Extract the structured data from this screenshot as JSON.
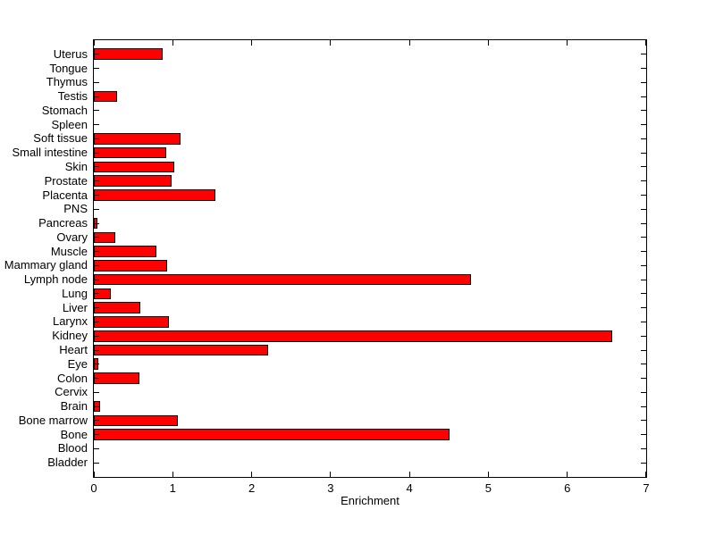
{
  "figure": {
    "background_color": "#ffffff",
    "axis_color": "#000000"
  },
  "chart_data": {
    "type": "bar",
    "orientation": "horizontal",
    "title": "",
    "xlabel": "Enrichment",
    "ylabel": "",
    "xlim": [
      0,
      7
    ],
    "xticks": [
      0,
      1,
      2,
      3,
      4,
      5,
      6,
      7
    ],
    "grid": false,
    "legend_position": "none",
    "bar_color": "#ff0000",
    "bar_edge_color": "#000000",
    "categories": [
      "Uterus",
      "Tongue",
      "Thymus",
      "Testis",
      "Stomach",
      "Spleen",
      "Soft tissue",
      "Small intestine",
      "Skin",
      "Prostate",
      "Placenta",
      "PNS",
      "Pancreas",
      "Ovary",
      "Muscle",
      "Mammary gland",
      "Lymph node",
      "Lung",
      "Liver",
      "Larynx",
      "Kidney",
      "Heart",
      "Eye",
      "Colon",
      "Cervix",
      "Brain",
      "Bone marrow",
      "Bone",
      "Blood",
      "Bladder"
    ],
    "values": [
      0.87,
      0,
      0,
      0.29,
      0,
      0,
      1.1,
      0.92,
      1.02,
      0.98,
      1.54,
      0,
      0.05,
      0.27,
      0.79,
      0.93,
      4.78,
      0.21,
      0.59,
      0.95,
      6.57,
      2.21,
      0.06,
      0.58,
      0,
      0.08,
      1.07,
      4.51,
      0,
      0
    ]
  }
}
